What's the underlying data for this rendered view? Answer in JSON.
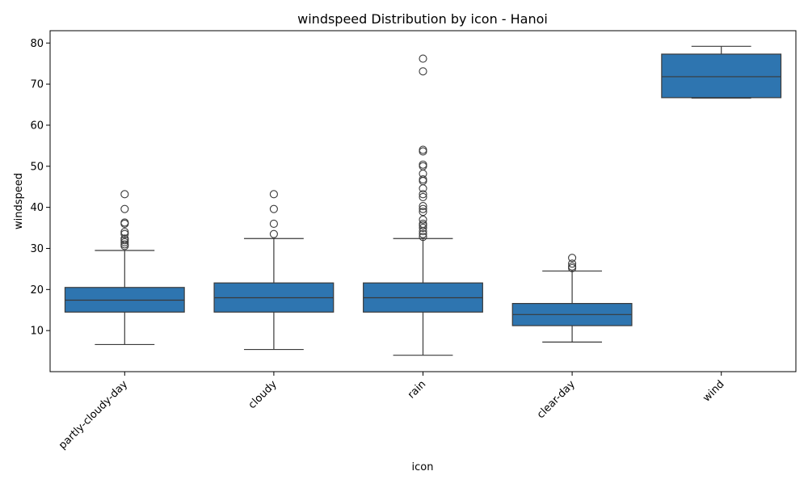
{
  "chart_data": {
    "type": "box",
    "title": "windspeed Distribution by icon - Hanoi",
    "xlabel": "icon",
    "ylabel": "windspeed",
    "ylim": [
      0,
      83
    ],
    "yticks": [
      10,
      20,
      30,
      40,
      50,
      60,
      70,
      80
    ],
    "grid": false,
    "box_color": "#2e75b0",
    "line_color": "#3a3a3a",
    "categories": [
      "partly-cloudy-day",
      "cloudy",
      "rain",
      "clear-day",
      "wind"
    ],
    "boxes": [
      {
        "category": "partly-cloudy-day",
        "whisker_low": 6.6,
        "q1": 14.5,
        "median": 17.4,
        "q3": 20.5,
        "whisker_high": 29.5,
        "outliers": [
          30.6,
          31.0,
          31.5,
          32.0,
          32.4,
          33.5,
          34.0,
          36.0,
          36.3,
          39.6,
          43.2
        ]
      },
      {
        "category": "cloudy",
        "whisker_low": 5.4,
        "q1": 14.5,
        "median": 18.0,
        "q3": 21.6,
        "whisker_high": 32.4,
        "outliers": [
          33.5,
          36.0,
          39.6,
          43.2
        ]
      },
      {
        "category": "rain",
        "whisker_low": 4.0,
        "q1": 14.5,
        "median": 18.0,
        "q3": 21.6,
        "whisker_high": 32.4,
        "outliers": [
          32.8,
          33.5,
          34.2,
          35.0,
          35.6,
          36.0,
          37.0,
          38.9,
          39.6,
          40.3,
          42.5,
          43.2,
          44.6,
          46.4,
          46.8,
          48.2,
          50.0,
          50.4,
          53.6,
          54.0,
          73.1,
          76.2
        ]
      },
      {
        "category": "clear-day",
        "whisker_low": 7.2,
        "q1": 11.2,
        "median": 13.9,
        "q3": 16.6,
        "whisker_high": 24.5,
        "outliers": [
          25.2,
          25.6,
          26.3,
          27.7
        ]
      },
      {
        "category": "wind",
        "whisker_low": 66.6,
        "q1": 66.7,
        "median": 71.8,
        "q3": 77.3,
        "whisker_high": 79.2,
        "outliers": []
      }
    ]
  }
}
